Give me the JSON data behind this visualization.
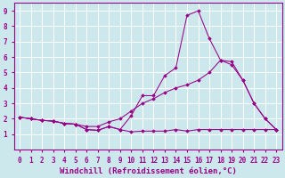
{
  "bg_color": "#cce8ec",
  "line_color": "#990088",
  "grid_color": "#ffffff",
  "xlabel": "Windchill (Refroidissement éolien,°C)",
  "xlim": [
    -0.5,
    23.5
  ],
  "ylim": [
    0,
    9.5
  ],
  "xticks": [
    0,
    1,
    2,
    3,
    4,
    5,
    6,
    7,
    8,
    9,
    10,
    11,
    12,
    13,
    14,
    15,
    16,
    17,
    18,
    19,
    20,
    21,
    22,
    23
  ],
  "yticks": [
    1,
    2,
    3,
    4,
    5,
    6,
    7,
    8,
    9
  ],
  "series": [
    {
      "x": [
        0,
        1,
        2,
        3,
        4,
        5,
        6,
        7,
        8,
        9,
        10,
        11,
        12,
        13,
        14,
        15,
        16,
        17,
        18,
        19,
        20,
        21,
        22,
        23
      ],
      "y": [
        2.1,
        2.0,
        1.9,
        1.85,
        1.7,
        1.65,
        1.3,
        1.25,
        1.5,
        1.3,
        1.15,
        1.2,
        1.2,
        1.2,
        1.3,
        1.2,
        1.3,
        1.3,
        1.3,
        1.3,
        1.3,
        1.3,
        1.3,
        1.3
      ]
    },
    {
      "x": [
        0,
        1,
        2,
        3,
        4,
        5,
        6,
        7,
        8,
        9,
        10,
        11,
        12,
        13,
        14,
        15,
        16,
        17,
        18,
        19,
        20,
        21,
        22,
        23
      ],
      "y": [
        2.1,
        2.0,
        1.9,
        1.85,
        1.7,
        1.65,
        1.3,
        1.25,
        1.5,
        1.3,
        2.2,
        3.5,
        3.5,
        4.8,
        5.3,
        8.7,
        9.0,
        7.2,
        5.8,
        5.7,
        4.5,
        3.0,
        2.0,
        1.3
      ]
    },
    {
      "x": [
        0,
        1,
        2,
        3,
        4,
        5,
        6,
        7,
        8,
        9,
        10,
        11,
        12,
        13,
        14,
        15,
        16,
        17,
        18,
        19,
        20,
        21,
        22,
        23
      ],
      "y": [
        2.1,
        2.0,
        1.9,
        1.85,
        1.7,
        1.65,
        1.5,
        1.5,
        1.8,
        2.0,
        2.5,
        3.0,
        3.3,
        3.7,
        4.0,
        4.2,
        4.5,
        5.0,
        5.8,
        5.5,
        4.5,
        3.0,
        2.0,
        1.3
      ]
    }
  ],
  "tick_fontsize": 5.5,
  "xlabel_fontsize": 6.5
}
